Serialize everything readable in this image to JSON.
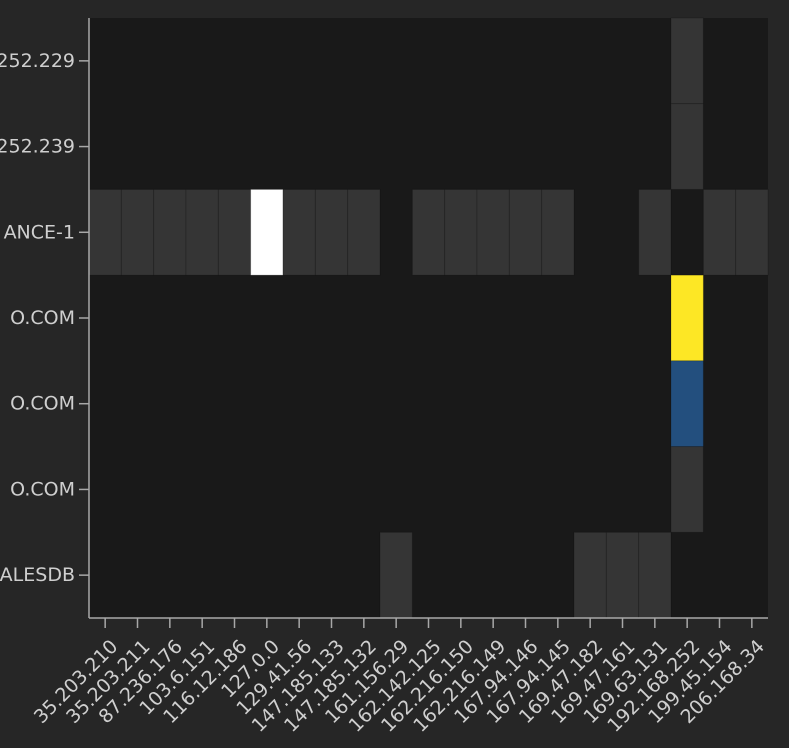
{
  "chart_data": {
    "type": "heatmap",
    "x_categories": [
      "35.203.210",
      "35.203.211",
      "87.236.176",
      "103.6.151",
      "116.12.186",
      "127.0.0",
      "129.41.56",
      "147.185.133",
      "147.185.132",
      "161.156.29",
      "162.142.125",
      "162.216.150",
      "162.216.149",
      "167.94.146",
      "167.94.145",
      "169.47.182",
      "169.47.161",
      "169.63.131",
      "192.168.252",
      "199.45.154",
      "206.168.34"
    ],
    "y_categories": [
      "252.229",
      "252.239",
      "ANCE-1",
      "O.COM",
      "O.COM",
      "O.COM",
      "ALESDB"
    ],
    "colors": {
      "background": "#262626",
      "plot_background": "#191919",
      "low": "#353535",
      "white": "#ffffff",
      "yellow": "#fde725",
      "blue": "#234f7e"
    },
    "cells": [
      {
        "x": 18,
        "y": 0,
        "level": "low"
      },
      {
        "x": 18,
        "y": 1,
        "level": "low"
      },
      {
        "x": 0,
        "y": 2,
        "level": "low"
      },
      {
        "x": 1,
        "y": 2,
        "level": "low"
      },
      {
        "x": 2,
        "y": 2,
        "level": "low"
      },
      {
        "x": 3,
        "y": 2,
        "level": "low"
      },
      {
        "x": 4,
        "y": 2,
        "level": "low"
      },
      {
        "x": 5,
        "y": 2,
        "level": "white"
      },
      {
        "x": 6,
        "y": 2,
        "level": "low"
      },
      {
        "x": 7,
        "y": 2,
        "level": "low"
      },
      {
        "x": 8,
        "y": 2,
        "level": "low"
      },
      {
        "x": 10,
        "y": 2,
        "level": "low"
      },
      {
        "x": 11,
        "y": 2,
        "level": "low"
      },
      {
        "x": 12,
        "y": 2,
        "level": "low"
      },
      {
        "x": 13,
        "y": 2,
        "level": "low"
      },
      {
        "x": 14,
        "y": 2,
        "level": "low"
      },
      {
        "x": 17,
        "y": 2,
        "level": "low"
      },
      {
        "x": 19,
        "y": 2,
        "level": "low"
      },
      {
        "x": 20,
        "y": 2,
        "level": "low"
      },
      {
        "x": 18,
        "y": 3,
        "level": "yellow"
      },
      {
        "x": 18,
        "y": 4,
        "level": "blue"
      },
      {
        "x": 18,
        "y": 5,
        "level": "low"
      },
      {
        "x": 9,
        "y": 6,
        "level": "low"
      },
      {
        "x": 15,
        "y": 6,
        "level": "low"
      },
      {
        "x": 16,
        "y": 6,
        "level": "low"
      },
      {
        "x": 17,
        "y": 6,
        "level": "low"
      }
    ]
  }
}
